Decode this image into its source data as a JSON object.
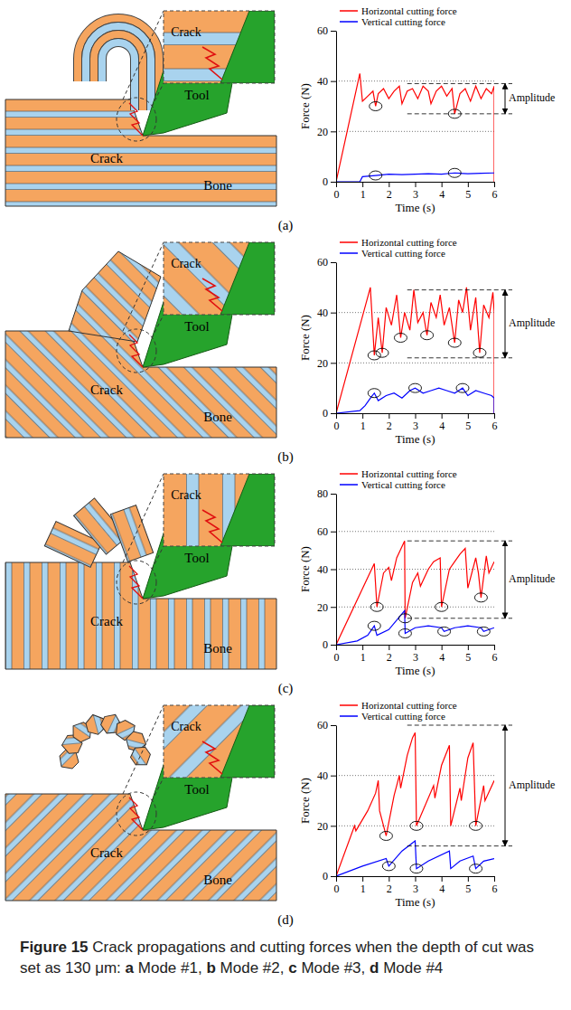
{
  "chart_data": [
    {
      "type": "line",
      "label": "(a)",
      "x_label": "Time (s)",
      "y_label": "Force (N)",
      "xlim": [
        0,
        6
      ],
      "ylim": [
        0,
        60
      ],
      "xticks": [
        0,
        1,
        2,
        3,
        4,
        5,
        6
      ],
      "yticks": [
        0,
        20,
        40,
        60
      ],
      "grid": true,
      "legend": "top",
      "series": [
        {
          "name": "Horizontal cutting force",
          "color": "#ff0000",
          "x": [
            0,
            0.9,
            1.0,
            1.2,
            1.4,
            1.5,
            1.6,
            1.8,
            2.0,
            2.2,
            2.4,
            2.5,
            2.7,
            2.9,
            3.1,
            3.3,
            3.5,
            3.6,
            3.8,
            4.0,
            4.2,
            4.4,
            4.5,
            4.7,
            4.9,
            5.1,
            5.3,
            5.5,
            5.7,
            5.9,
            6.0,
            6.0
          ],
          "values": [
            0,
            43,
            32,
            34,
            36,
            30,
            35,
            37,
            33,
            36,
            38,
            31,
            36,
            37,
            33,
            38,
            36,
            31,
            36,
            38,
            34,
            37,
            27,
            35,
            37,
            32,
            38,
            33,
            37,
            35,
            38,
            0
          ],
          "crack_x": [
            1.5,
            4.5
          ],
          "crack_y": [
            30,
            27
          ]
        },
        {
          "name": "Vertical cutting force",
          "color": "#0000ff",
          "x": [
            0,
            0.9,
            1.0,
            1.5,
            2.0,
            2.5,
            3.0,
            3.5,
            4.0,
            4.5,
            5.0,
            5.5,
            6.0
          ],
          "values": [
            0,
            0,
            2,
            2.5,
            3,
            2.8,
            3,
            3.2,
            3,
            3.5,
            3.2,
            3.4,
            3.5
          ],
          "crack_x": [
            1.5,
            4.5
          ],
          "crack_y": [
            2.5,
            3.5
          ]
        }
      ],
      "amplitude": {
        "label": "Amplitude",
        "upper": 39,
        "lower": 27
      },
      "diagram": {
        "inset": "Crack",
        "crack": "Crack",
        "tool": "Tool",
        "bone": "Bone"
      }
    },
    {
      "type": "line",
      "label": "(b)",
      "x_label": "Time (s)",
      "y_label": "Force (N)",
      "xlim": [
        0,
        6
      ],
      "ylim": [
        0,
        60
      ],
      "xticks": [
        0,
        1,
        2,
        3,
        4,
        5,
        6
      ],
      "yticks": [
        0,
        20,
        40,
        60
      ],
      "grid": true,
      "legend": "top",
      "series": [
        {
          "name": "Horizontal cutting force",
          "color": "#ff0000",
          "x": [
            0,
            1.3,
            1.45,
            1.6,
            1.75,
            1.9,
            2.1,
            2.3,
            2.45,
            2.6,
            2.8,
            2.95,
            3.1,
            3.3,
            3.45,
            3.6,
            3.8,
            3.95,
            4.1,
            4.3,
            4.5,
            4.65,
            4.8,
            4.95,
            5.1,
            5.3,
            5.45,
            5.6,
            5.8,
            5.95,
            6.0,
            6.0
          ],
          "values": [
            0,
            50,
            23,
            38,
            24,
            42,
            35,
            47,
            30,
            40,
            33,
            49,
            36,
            40,
            31,
            44,
            38,
            47,
            35,
            42,
            28,
            45,
            40,
            50,
            33,
            46,
            24,
            43,
            38,
            48,
            40,
            0
          ],
          "crack_x": [
            1.45,
            1.75,
            2.45,
            3.45,
            4.5,
            5.45
          ],
          "crack_y": [
            23,
            24,
            30,
            31,
            28,
            24
          ]
        },
        {
          "name": "Vertical cutting force",
          "color": "#0000ff",
          "x": [
            0,
            0.9,
            1.1,
            1.3,
            1.45,
            1.6,
            1.9,
            2.2,
            2.5,
            2.8,
            3.0,
            3.3,
            3.6,
            3.9,
            4.2,
            4.5,
            4.8,
            5.0,
            5.3,
            5.6,
            5.9,
            6.0,
            6.0
          ],
          "values": [
            0,
            1,
            3,
            6,
            8,
            5,
            7,
            8,
            6,
            9,
            10,
            8,
            9,
            10,
            9,
            8,
            10,
            7,
            9,
            8,
            7,
            6,
            0
          ],
          "crack_x": [
            1.45,
            3.0,
            4.8
          ],
          "crack_y": [
            8,
            10,
            10
          ]
        }
      ],
      "amplitude": {
        "label": "Amplitude",
        "upper": 49,
        "lower": 22
      },
      "diagram": {
        "inset": "Crack",
        "crack": "Crack",
        "tool": "Tool",
        "bone": "Bone"
      }
    },
    {
      "type": "line",
      "label": "(c)",
      "x_label": "Time (s)",
      "y_label": "Force (N)",
      "xlim": [
        0,
        6
      ],
      "ylim": [
        0,
        80
      ],
      "xticks": [
        0,
        1,
        2,
        3,
        4,
        5,
        6
      ],
      "yticks": [
        0,
        20,
        40,
        60,
        80
      ],
      "grid": true,
      "legend": "top",
      "series": [
        {
          "name": "Horizontal cutting force",
          "color": "#ff0000",
          "x": [
            0,
            1.45,
            1.55,
            1.8,
            2.0,
            2.1,
            2.3,
            2.6,
            2.62,
            2.9,
            3.1,
            3.2,
            3.5,
            3.7,
            3.95,
            4.0,
            4.3,
            4.5,
            4.7,
            4.9,
            5.0,
            5.3,
            5.4,
            5.5,
            5.7,
            5.8,
            6.0
          ],
          "values": [
            0,
            43,
            20,
            38,
            41,
            34,
            46,
            55,
            14,
            33,
            38,
            31,
            40,
            44,
            46,
            20,
            40,
            44,
            48,
            51,
            30,
            46,
            38,
            25,
            47,
            38,
            44
          ],
          "crack_x": [
            1.55,
            2.62,
            4.0,
            5.5
          ],
          "crack_y": [
            20,
            14,
            20,
            25
          ]
        },
        {
          "name": "Vertical cutting force",
          "color": "#0000ff",
          "x": [
            0,
            0.8,
            1.2,
            1.45,
            1.55,
            2.0,
            2.6,
            2.62,
            3.0,
            3.5,
            4.0,
            4.1,
            4.5,
            5.0,
            5.5,
            5.6,
            6.0
          ],
          "values": [
            0,
            2,
            5,
            10,
            5,
            8,
            18,
            6,
            9,
            10,
            9,
            7,
            9,
            10,
            9,
            7,
            9
          ],
          "crack_x": [
            1.45,
            2.62,
            4.1,
            5.6
          ],
          "crack_y": [
            10,
            6,
            7,
            7
          ]
        }
      ],
      "amplitude": {
        "label": "Amplitude",
        "upper": 55,
        "lower": 14
      },
      "diagram": {
        "inset": "Crack",
        "crack": "Crack",
        "tool": "Tool",
        "bone": "Bone"
      }
    },
    {
      "type": "line",
      "label": "(d)",
      "x_label": "Time (s)",
      "y_label": "Force (N)",
      "xlim": [
        0,
        6
      ],
      "ylim": [
        0,
        60
      ],
      "xticks": [
        0,
        1,
        2,
        3,
        4,
        5,
        6
      ],
      "yticks": [
        0,
        20,
        40,
        60
      ],
      "grid": true,
      "legend": "top",
      "series": [
        {
          "name": "Horizontal cutting force",
          "color": "#ff0000",
          "x": [
            0,
            0.7,
            0.75,
            1.2,
            1.5,
            1.6,
            1.65,
            1.9,
            2.2,
            2.4,
            2.45,
            2.7,
            2.9,
            3.0,
            3.05,
            3.7,
            3.75,
            4.0,
            4.3,
            4.35,
            4.7,
            4.75,
            5.0,
            5.2,
            5.3,
            5.6,
            5.65,
            6.0
          ],
          "values": [
            0,
            20,
            18,
            26,
            33,
            38,
            26,
            16,
            32,
            40,
            35,
            48,
            55,
            57,
            20,
            36,
            31,
            44,
            52,
            20,
            35,
            30,
            47,
            53,
            20,
            36,
            30,
            38
          ],
          "crack_x": [
            1.9,
            3.05,
            5.3
          ],
          "crack_y": [
            16,
            20,
            20
          ]
        },
        {
          "name": "Vertical cutting force",
          "color": "#0000ff",
          "x": [
            0,
            1.0,
            1.9,
            2.0,
            2.5,
            3.0,
            3.05,
            3.5,
            4.3,
            4.35,
            4.7,
            5.2,
            5.3,
            5.6,
            6.0
          ],
          "values": [
            0,
            4,
            7,
            4,
            10,
            14,
            3,
            6,
            10,
            3,
            6,
            8,
            3,
            6,
            7
          ],
          "crack_x": [
            2.0,
            3.05,
            5.3
          ],
          "crack_y": [
            4,
            3,
            3
          ]
        }
      ],
      "amplitude": {
        "label": "Amplitude",
        "upper": 60,
        "lower": 12
      },
      "diagram": {
        "inset": "Crack",
        "crack": "Crack",
        "tool": "Tool",
        "bone": "Bone"
      }
    }
  ],
  "caption": {
    "figure": "Figure 15",
    "text": "Crack propagations and cutting forces when the depth of cut was set as 130 μm:",
    "separator": ",",
    "items": [
      {
        "letter": "a",
        "text": "Mode #1"
      },
      {
        "letter": "b",
        "text": "Mode #2"
      },
      {
        "letter": "c",
        "text": "Mode #3"
      },
      {
        "letter": "d",
        "text": "Mode #4"
      }
    ]
  }
}
